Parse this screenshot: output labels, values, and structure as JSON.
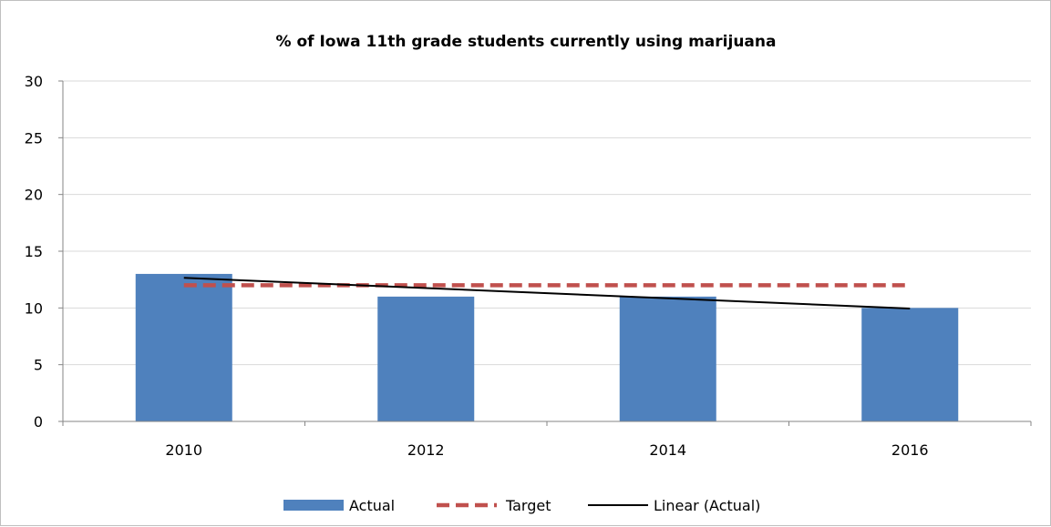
{
  "chart_data": {
    "type": "bar",
    "title": "% of Iowa 11th grade students currently using marijuana",
    "xlabel": "",
    "ylabel": "",
    "categories": [
      "2010",
      "2012",
      "2014",
      "2016"
    ],
    "series": [
      {
        "name": "Actual",
        "kind": "bar",
        "values": [
          13,
          11,
          11,
          10
        ],
        "color": "#4f81bd"
      },
      {
        "name": "Target",
        "kind": "line-dashed",
        "values": [
          12,
          12,
          12,
          12
        ],
        "color": "#c0504d"
      },
      {
        "name": "Linear (Actual)",
        "kind": "trendline",
        "values": [
          12.65,
          11.75,
          10.85,
          9.95
        ],
        "color": "#000000"
      }
    ],
    "ylim": [
      0,
      30
    ],
    "yticks": [
      "0",
      "5",
      "10",
      "15",
      "20",
      "25",
      "30"
    ],
    "grid": true,
    "legend": "bottom"
  }
}
